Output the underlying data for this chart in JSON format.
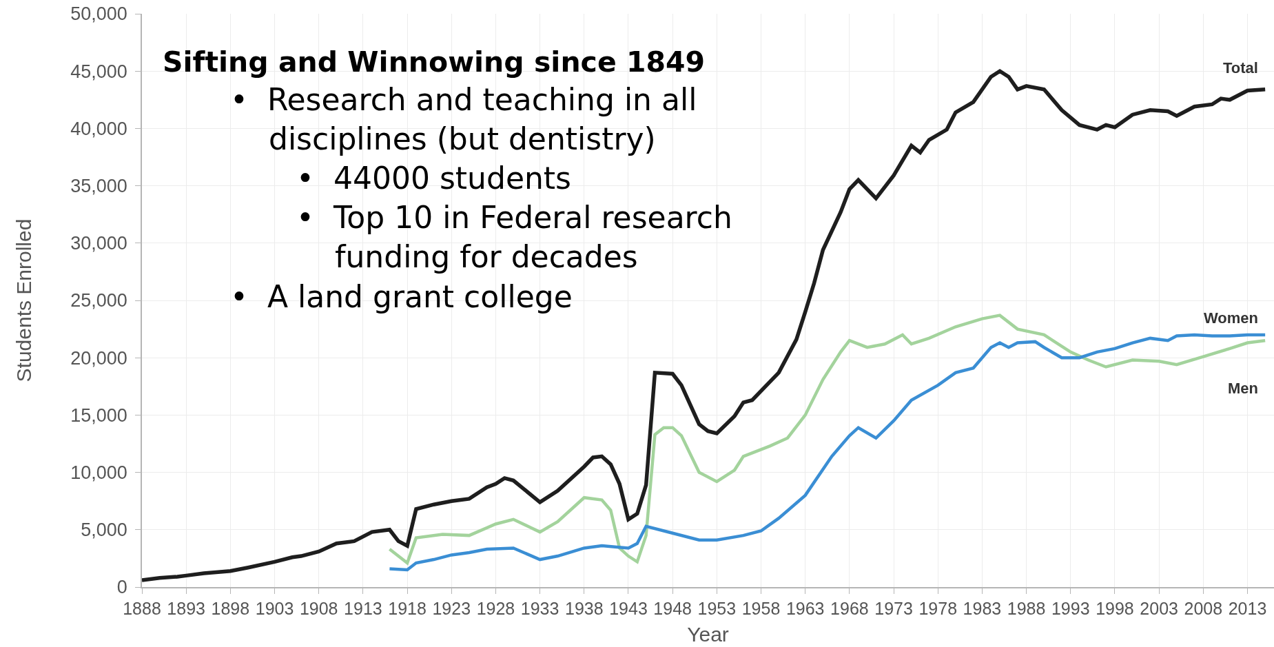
{
  "chart_data": {
    "type": "line",
    "title": "Sifting and Winnowing since 1849",
    "annotations": [
      "• Research and teaching in all disciplines (but dentistry)",
      "• 44000 students",
      "• Top 10 in Federal research funding for decades",
      "• A land grant college"
    ],
    "xlabel": "Year",
    "ylabel": "Students Enrolled",
    "xlim": [
      1888,
      2016
    ],
    "xticks": [
      1888,
      1893,
      1898,
      1903,
      1908,
      1913,
      1918,
      1923,
      1928,
      1933,
      1938,
      1943,
      1948,
      1953,
      1958,
      1963,
      1968,
      1973,
      1978,
      1983,
      1988,
      1993,
      1998,
      2003,
      2008,
      2013
    ],
    "ylim": [
      0,
      50000
    ],
    "yticks": [
      0,
      {
        "value": 5000,
        "label": "5,000"
      },
      {
        "value": 10000,
        "label": "10,000"
      },
      {
        "value": 15000,
        "label": "15,000"
      },
      {
        "value": 20000,
        "label": "20,000"
      },
      {
        "value": 25000,
        "label": "25,000"
      },
      {
        "value": 30000,
        "label": "30,000"
      },
      {
        "value": 35000,
        "label": "35,000"
      },
      {
        "value": 40000,
        "label": "40,000"
      },
      {
        "value": 45000,
        "label": "45,000"
      },
      {
        "value": 50000,
        "label": "50,000"
      }
    ],
    "grid": true,
    "series": [
      {
        "name": "Total",
        "color": "#1e1e1e",
        "x": [
          1888,
          1890,
          1892,
          1893,
          1895,
          1898,
          1900,
          1903,
          1905,
          1906,
          1908,
          1910,
          1912,
          1914,
          1916,
          1917,
          1918,
          1919,
          1921,
          1923,
          1925,
          1927,
          1928,
          1929,
          1930,
          1933,
          1935,
          1938,
          1939,
          1940,
          1941,
          1942,
          1943,
          1944,
          1945,
          1946,
          1948,
          1949,
          1951,
          1952,
          1953,
          1955,
          1956,
          1957,
          1959,
          1960,
          1962,
          1963,
          1964,
          1965,
          1967,
          1968,
          1969,
          1971,
          1973,
          1975,
          1976,
          1977,
          1979,
          1980,
          1982,
          1984,
          1985,
          1986,
          1987,
          1988,
          1990,
          1992,
          1994,
          1996,
          1997,
          1998,
          2000,
          2002,
          2004,
          2005,
          2006,
          2007,
          2009,
          2010,
          2011,
          2013,
          2015
        ],
        "values": [
          600,
          800,
          900,
          1000,
          1200,
          1400,
          1700,
          2200,
          2600,
          2700,
          3100,
          3800,
          4000,
          4800,
          5000,
          4000,
          3600,
          6800,
          7200,
          7500,
          7700,
          8700,
          9000,
          9500,
          9300,
          7400,
          8400,
          10500,
          11300,
          11400,
          10700,
          9000,
          5900,
          6400,
          8900,
          18700,
          18600,
          17600,
          14200,
          13600,
          13400,
          14900,
          16100,
          16300,
          17900,
          18700,
          21600,
          24000,
          26500,
          29400,
          32700,
          34700,
          35500,
          33900,
          35900,
          38500,
          37900,
          39000,
          39900,
          41400,
          42300,
          44500,
          45000,
          44500,
          43400,
          43700,
          43400,
          41600,
          40300,
          39900,
          40300,
          40100,
          41200,
          41600,
          41500,
          41100,
          41500,
          41900,
          42100,
          42600,
          42500,
          43300,
          43400
        ]
      },
      {
        "name": "Women",
        "color": "#3a8ed4",
        "x": [
          1916,
          1918,
          1919,
          1921,
          1923,
          1925,
          1927,
          1930,
          1933,
          1935,
          1938,
          1940,
          1943,
          1944,
          1945,
          1948,
          1951,
          1953,
          1956,
          1958,
          1960,
          1963,
          1966,
          1968,
          1969,
          1971,
          1973,
          1975,
          1978,
          1980,
          1982,
          1984,
          1985,
          1986,
          1987,
          1989,
          1990,
          1992,
          1994,
          1996,
          1998,
          2000,
          2002,
          2004,
          2005,
          2007,
          2009,
          2011,
          2013,
          2015
        ],
        "values": [
          1600,
          1500,
          2100,
          2400,
          2800,
          3000,
          3300,
          3400,
          2400,
          2700,
          3400,
          3600,
          3400,
          3800,
          5300,
          4700,
          4100,
          4100,
          4500,
          4900,
          6000,
          8000,
          11400,
          13200,
          13900,
          13000,
          14500,
          16300,
          17600,
          18700,
          19100,
          20900,
          21300,
          20900,
          21300,
          21400,
          20900,
          20000,
          20000,
          20500,
          20800,
          21300,
          21700,
          21500,
          21900,
          22000,
          21900,
          21900,
          22000,
          22000
        ]
      },
      {
        "name": "Men",
        "color": "#a3d39c",
        "x": [
          1916,
          1918,
          1919,
          1922,
          1925,
          1928,
          1930,
          1933,
          1935,
          1938,
          1940,
          1941,
          1942,
          1943,
          1944,
          1945,
          1946,
          1947,
          1948,
          1949,
          1951,
          1953,
          1955,
          1956,
          1959,
          1961,
          1963,
          1965,
          1967,
          1968,
          1970,
          1972,
          1974,
          1975,
          1977,
          1980,
          1983,
          1985,
          1987,
          1990,
          1993,
          1995,
          1997,
          2000,
          2003,
          2005,
          2008,
          2011,
          2013,
          2015
        ],
        "values": [
          3300,
          2100,
          4300,
          4600,
          4500,
          5500,
          5900,
          4800,
          5700,
          7800,
          7600,
          6700,
          3400,
          2700,
          2200,
          4500,
          13300,
          13900,
          13900,
          13200,
          10000,
          9200,
          10200,
          11400,
          12300,
          13000,
          15000,
          18100,
          20500,
          21500,
          20900,
          21200,
          22000,
          21200,
          21700,
          22700,
          23400,
          23700,
          22500,
          22000,
          20500,
          19800,
          19200,
          19800,
          19700,
          19400,
          20100,
          20800,
          21300,
          21500
        ]
      }
    ]
  }
}
